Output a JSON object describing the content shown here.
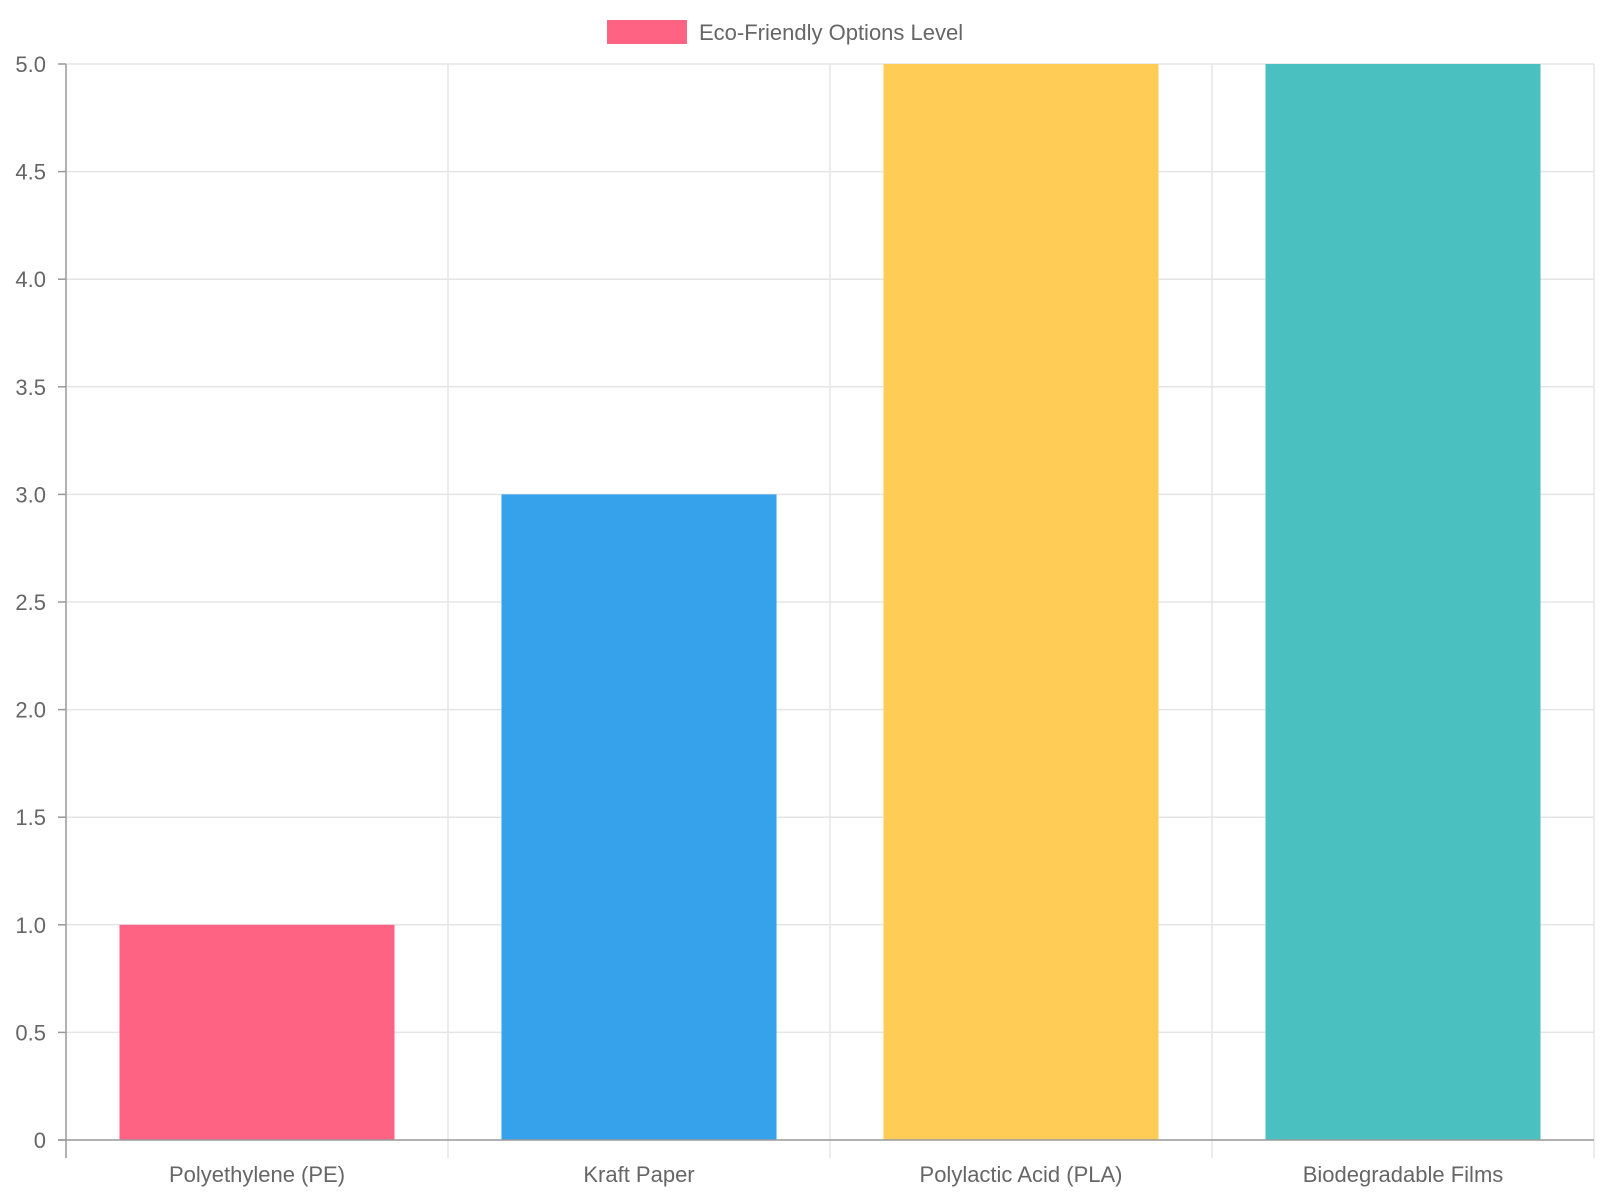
{
  "chart_data": {
    "type": "bar",
    "categories": [
      "Polyethylene (PE)",
      "Kraft Paper",
      "Polylactic Acid (PLA)",
      "Biodegradable Films"
    ],
    "series": [
      {
        "name": "Eco-Friendly Options Level",
        "values": [
          1,
          3,
          5,
          5
        ]
      }
    ],
    "bar_colors": [
      "#ff6384",
      "#36a2eb",
      "#ffcd56",
      "#4bc0c0"
    ],
    "ylim": [
      0,
      5
    ],
    "ytick_step": 0.5,
    "ytick_labels": [
      "0",
      "0.5",
      "1.0",
      "1.5",
      "2.0",
      "2.5",
      "3.0",
      "3.5",
      "4.0",
      "4.5",
      "5.0"
    ],
    "grid": true,
    "legend": {
      "position": "top",
      "label": "Eco-Friendly Options Level",
      "color": "#ff6384"
    },
    "colors": {
      "grid": "#e5e5e5",
      "axis": "#999999",
      "text": "#666666"
    }
  }
}
